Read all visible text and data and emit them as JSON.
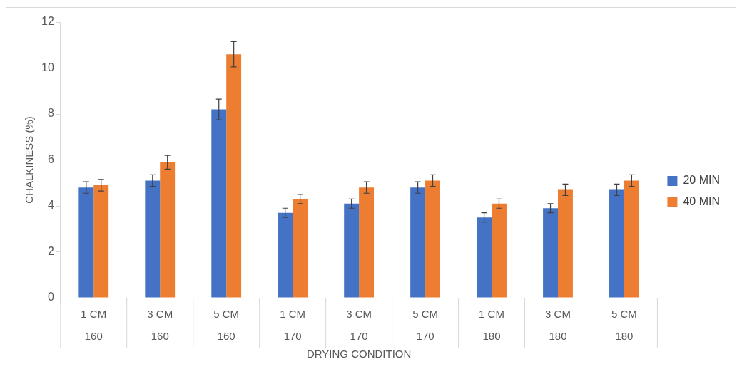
{
  "chart_data": {
    "type": "bar",
    "xlabel": "DRYING CONDITION",
    "ylabel": "CHALKINESS (%)",
    "categories": [
      "1 CM\n160",
      "3 CM\n160",
      "5 CM\n160",
      "1 CM\n170",
      "3 CM\n170",
      "5 CM\n170",
      "1 CM\n180",
      "3 CM\n180",
      "5 CM\n180"
    ],
    "series": [
      {
        "name": "20 MIN",
        "color": "#4472c4",
        "values": [
          4.8,
          5.1,
          8.2,
          3.7,
          4.1,
          4.8,
          3.5,
          3.9,
          4.7
        ],
        "errors": [
          0.25,
          0.25,
          0.45,
          0.2,
          0.2,
          0.25,
          0.2,
          0.2,
          0.25
        ]
      },
      {
        "name": "40 MIN",
        "color": "#ed7d31",
        "values": [
          4.9,
          5.9,
          10.6,
          4.3,
          4.8,
          5.1,
          4.1,
          4.7,
          5.1
        ],
        "errors": [
          0.25,
          0.3,
          0.55,
          0.2,
          0.25,
          0.25,
          0.2,
          0.25,
          0.25
        ]
      }
    ],
    "ylim": [
      0,
      12
    ],
    "yticks": [
      0,
      2,
      4,
      6,
      8,
      10,
      12
    ],
    "grid": false,
    "legend": "right"
  }
}
